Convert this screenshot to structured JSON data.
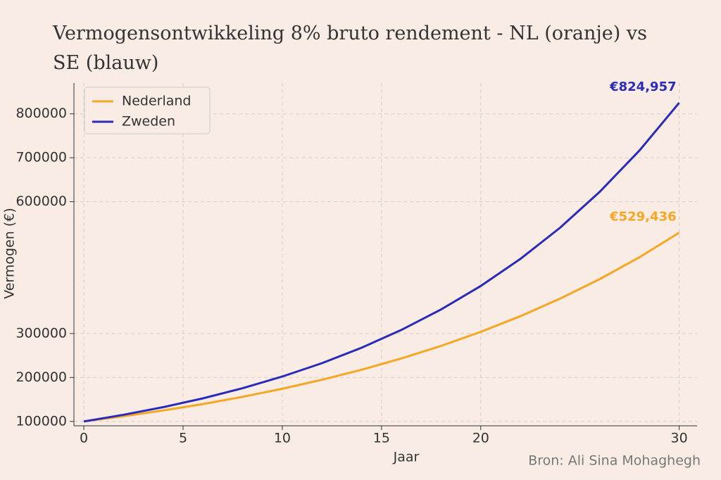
{
  "chart_data": {
    "type": "line",
    "title": "Vermogensontwikkeling 8% bruto rendement - NL (oranje) vs SE (blauw)",
    "x_label": "Jaar",
    "y_label": "Vermogen (€)",
    "source": "Bron: Ali Sina Mohaghegh",
    "x": [
      0,
      2,
      4,
      6,
      8,
      10,
      12,
      14,
      16,
      18,
      20,
      22,
      24,
      26,
      28,
      30
    ],
    "series": [
      {
        "name": "Nederland",
        "color": "#f5a623",
        "values": [
          100000,
          111752,
          124884,
          139561,
          155962,
          174290,
          194773,
          217663,
          243243,
          271825,
          303767,
          339462,
          379358,
          423939,
          473759,
          529436
        ],
        "value_labels": [
          null,
          null,
          null,
          null,
          null,
          null,
          null,
          null,
          null,
          null,
          null,
          null,
          null,
          null,
          null,
          "€529,436"
        ]
      },
      {
        "name": "Zweden",
        "color": "#2a2bb8",
        "values": [
          100000,
          115105,
          132491,
          152508,
          175544,
          202063,
          232588,
          267720,
          308160,
          354707,
          408286,
          469955,
          540941,
          622650,
          716700,
          824957
        ],
        "value_labels": [
          null,
          null,
          null,
          null,
          null,
          null,
          null,
          null,
          null,
          null,
          null,
          null,
          null,
          null,
          null,
          "€824,957"
        ]
      }
    ],
    "xlim": [
      -0.5,
      30.9
    ],
    "xticks": [
      0,
      5,
      10,
      15,
      20,
      30
    ],
    "ylim": [
      90000,
      870000
    ],
    "yticks": [
      100000,
      200000,
      300000,
      600000,
      700000,
      800000
    ],
    "grid": true,
    "legend": "upper left"
  }
}
